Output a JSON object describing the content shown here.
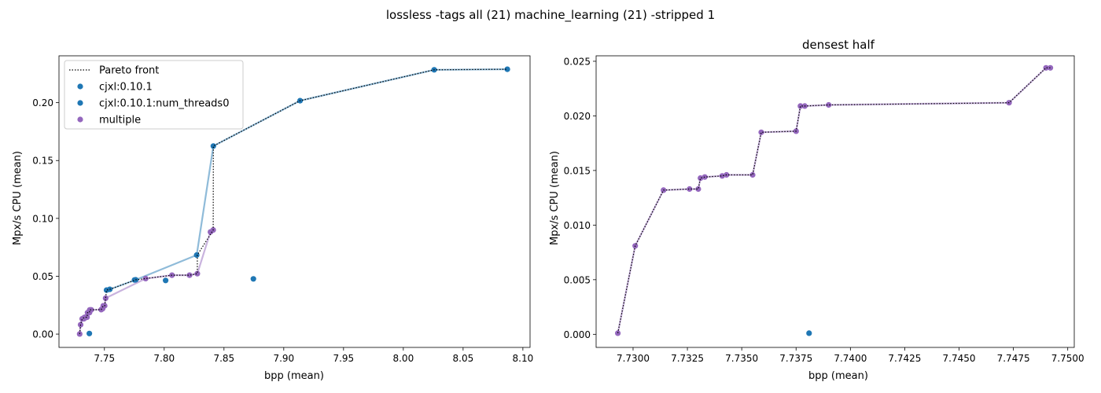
{
  "suptitle": "lossless -tags all (21) machine_learning (21) -stripped 1",
  "colors": {
    "cjxl": "#1f77b4",
    "multiple": "#9467bd",
    "pareto": "#000000"
  },
  "legend": {
    "items": [
      {
        "label": "Pareto front",
        "kind": "dotted-line",
        "color": "#000000"
      },
      {
        "label": "cjxl:0.10.1",
        "kind": "marker",
        "color": "#1f77b4"
      },
      {
        "label": "cjxl:0.10.1:num_threads0",
        "kind": "marker",
        "color": "#1f77b4"
      },
      {
        "label": "multiple",
        "kind": "marker",
        "color": "#9467bd"
      }
    ],
    "placement": "upper-left"
  },
  "chart_data": [
    {
      "type": "scatter",
      "title": "",
      "xlabel": "bpp (mean)",
      "ylabel": "Mpx/s CPU (mean)",
      "xlim": [
        7.712,
        8.106
      ],
      "ylim": [
        -0.0115,
        0.2405
      ],
      "xticks": [
        7.75,
        7.8,
        7.85,
        7.9,
        7.95,
        8.0,
        8.05,
        8.1
      ],
      "xtick_labels": [
        "7.75",
        "7.80",
        "7.85",
        "7.90",
        "7.95",
        "8.00",
        "8.05",
        "8.10"
      ],
      "yticks": [
        0.0,
        0.05,
        0.1,
        0.15,
        0.2
      ],
      "ytick_labels": [
        "0.00",
        "0.05",
        "0.10",
        "0.15",
        "0.20"
      ],
      "legend_placement": "upper-left",
      "series": [
        {
          "name": "cjxl:0.10.1",
          "color": "#1f77b4",
          "points": [
            [
              7.7374,
              0.0005
            ],
            [
              7.7752,
              0.0468
            ],
            [
              7.8012,
              0.0464
            ],
            [
              7.8746,
              0.0477
            ]
          ]
        },
        {
          "name": "cjxl:0.10.1:num_threads0",
          "color": "#1f77b4",
          "line": true,
          "points": [
            [
              7.7518,
              0.038
            ],
            [
              7.7545,
              0.0387
            ],
            [
              7.7762,
              0.0469
            ],
            [
              7.8272,
              0.0683
            ],
            [
              7.8411,
              0.1625
            ],
            [
              7.9137,
              0.2017
            ],
            [
              8.0258,
              0.2284
            ],
            [
              8.087,
              0.2289
            ]
          ]
        },
        {
          "name": "multiple",
          "color": "#9467bd",
          "line": true,
          "points": [
            [
              7.7293,
              0.0001
            ],
            [
              7.7301,
              0.0081
            ],
            [
              7.7314,
              0.0132
            ],
            [
              7.7326,
              0.0133
            ],
            [
              7.733,
              0.0133
            ],
            [
              7.7331,
              0.0143
            ],
            [
              7.7333,
              0.0144
            ],
            [
              7.7341,
              0.0145
            ],
            [
              7.7343,
              0.0146
            ],
            [
              7.7355,
              0.0146
            ],
            [
              7.7359,
              0.0185
            ],
            [
              7.7375,
              0.0186
            ],
            [
              7.7377,
              0.0209
            ],
            [
              7.7379,
              0.0209
            ],
            [
              7.739,
              0.021
            ],
            [
              7.7473,
              0.0212
            ],
            [
              7.749,
              0.0244
            ],
            [
              7.7492,
              0.0244
            ],
            [
              7.7485,
              0.022
            ],
            [
              7.7502,
              0.0245
            ],
            [
              7.751,
              0.031
            ],
            [
              7.7845,
              0.048
            ],
            [
              7.8065,
              0.0509
            ],
            [
              7.8212,
              0.0509
            ],
            [
              7.8277,
              0.0522
            ],
            [
              7.8387,
              0.0883
            ],
            [
              7.841,
              0.09
            ]
          ]
        },
        {
          "name": "Pareto front",
          "color": "#000000",
          "kind": "dotted-line",
          "points": [
            [
              7.7293,
              0.0001
            ],
            [
              7.7301,
              0.0081
            ],
            [
              7.7314,
              0.0132
            ],
            [
              7.7331,
              0.0143
            ],
            [
              7.7343,
              0.0146
            ],
            [
              7.7355,
              0.0146
            ],
            [
              7.7359,
              0.0185
            ],
            [
              7.7375,
              0.0186
            ],
            [
              7.7377,
              0.0209
            ],
            [
              7.739,
              0.021
            ],
            [
              7.7473,
              0.0212
            ],
            [
              7.749,
              0.0244
            ],
            [
              7.7502,
              0.0245
            ],
            [
              7.751,
              0.031
            ],
            [
              7.7518,
              0.038
            ],
            [
              7.7545,
              0.0387
            ],
            [
              7.7762,
              0.0469
            ],
            [
              7.7845,
              0.048
            ],
            [
              7.8065,
              0.0509
            ],
            [
              7.8212,
              0.0509
            ],
            [
              7.8277,
              0.0522
            ],
            [
              7.8277,
              0.0683
            ],
            [
              7.841,
              0.09
            ],
            [
              7.8411,
              0.1625
            ],
            [
              7.9137,
              0.2017
            ],
            [
              8.0258,
              0.2284
            ],
            [
              8.087,
              0.2289
            ]
          ]
        }
      ]
    },
    {
      "type": "scatter",
      "title": "densest half",
      "xlabel": "bpp (mean)",
      "ylabel": "Mpx/s CPU (mean)",
      "xlim": [
        7.7283,
        7.7503
      ],
      "ylim": [
        -0.0012,
        0.0255
      ],
      "xticks": [
        7.73,
        7.7325,
        7.735,
        7.7375,
        7.74,
        7.7425,
        7.745,
        7.7475,
        7.75
      ],
      "xtick_labels": [
        "7.7300",
        "7.7325",
        "7.7350",
        "7.7375",
        "7.7400",
        "7.7425",
        "7.7450",
        "7.7475",
        "7.7500"
      ],
      "yticks": [
        0.0,
        0.005,
        0.01,
        0.015,
        0.02,
        0.025
      ],
      "ytick_labels": [
        "0.000",
        "0.005",
        "0.010",
        "0.015",
        "0.020",
        "0.025"
      ],
      "series": [
        {
          "name": "cjxl:0.10.1",
          "color": "#1f77b4",
          "points": [
            [
              7.7381,
              0.0001
            ]
          ]
        },
        {
          "name": "multiple",
          "color": "#9467bd",
          "line": true,
          "points": [
            [
              7.7293,
              0.0001
            ],
            [
              7.7301,
              0.0081
            ],
            [
              7.7314,
              0.0132
            ],
            [
              7.7326,
              0.0133
            ],
            [
              7.733,
              0.0133
            ],
            [
              7.7331,
              0.0143
            ],
            [
              7.7333,
              0.0144
            ],
            [
              7.7341,
              0.0145
            ],
            [
              7.7343,
              0.0146
            ],
            [
              7.7355,
              0.0146
            ],
            [
              7.7359,
              0.0185
            ],
            [
              7.7375,
              0.0186
            ],
            [
              7.7377,
              0.0209
            ],
            [
              7.7379,
              0.0209
            ],
            [
              7.739,
              0.021
            ],
            [
              7.7473,
              0.0212
            ],
            [
              7.749,
              0.0244
            ],
            [
              7.7492,
              0.0244
            ]
          ]
        },
        {
          "name": "Pareto front",
          "color": "#000000",
          "kind": "dotted-line",
          "points": [
            [
              7.7293,
              0.0001
            ],
            [
              7.7301,
              0.0081
            ],
            [
              7.7314,
              0.0132
            ],
            [
              7.7326,
              0.0133
            ],
            [
              7.733,
              0.0133
            ],
            [
              7.7331,
              0.0143
            ],
            [
              7.7333,
              0.0144
            ],
            [
              7.7341,
              0.0145
            ],
            [
              7.7343,
              0.0146
            ],
            [
              7.7355,
              0.0146
            ],
            [
              7.7359,
              0.0185
            ],
            [
              7.7375,
              0.0186
            ],
            [
              7.7377,
              0.0209
            ],
            [
              7.7379,
              0.0209
            ],
            [
              7.739,
              0.021
            ],
            [
              7.7473,
              0.0212
            ],
            [
              7.749,
              0.0244
            ],
            [
              7.7492,
              0.0244
            ]
          ]
        }
      ]
    }
  ]
}
